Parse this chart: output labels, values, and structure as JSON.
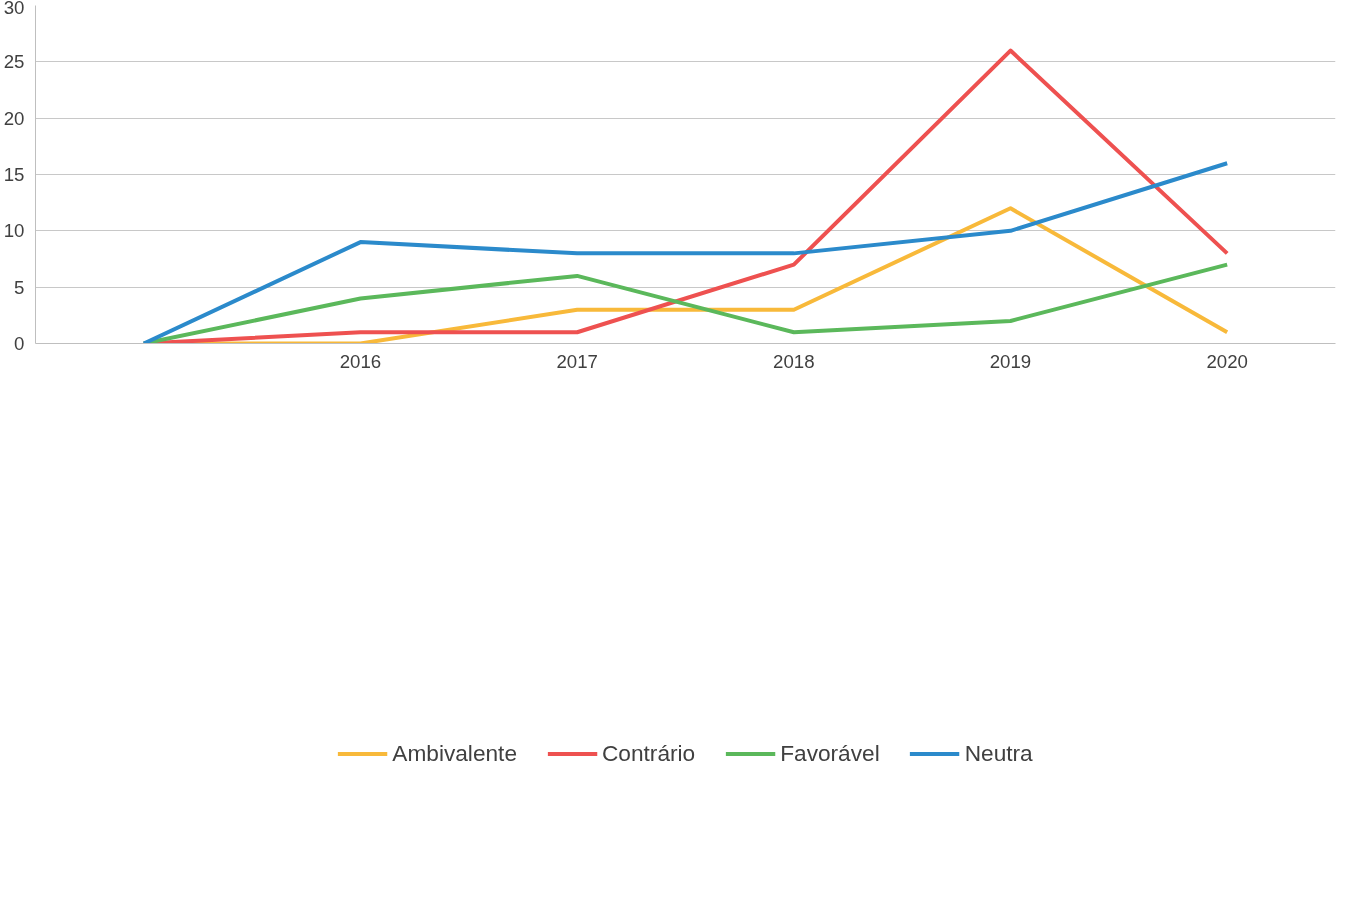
{
  "chart_data": {
    "type": "line",
    "categories": [
      null,
      "2016",
      "2017",
      "2018",
      "2019",
      "2020"
    ],
    "ylim": [
      0,
      30
    ],
    "yticks": [
      0,
      5,
      10,
      15,
      20,
      25,
      30
    ],
    "grid": "y",
    "legend": "bottom",
    "marker": "none",
    "line_style": "solid",
    "series": [
      {
        "name": "Ambivalente",
        "color": "#f8b93a",
        "values": [
          0,
          0,
          3,
          3,
          12,
          1
        ]
      },
      {
        "name": "Contrário",
        "color": "#ee5150",
        "values": [
          0,
          1,
          1,
          7,
          26,
          8
        ]
      },
      {
        "name": "Favorável",
        "color": "#5bb85b",
        "values": [
          0,
          4,
          6,
          1,
          2,
          7
        ]
      },
      {
        "name": "Neutra",
        "color": "#2b8acb",
        "values": [
          0,
          9,
          8,
          8,
          10,
          16
        ]
      }
    ]
  }
}
